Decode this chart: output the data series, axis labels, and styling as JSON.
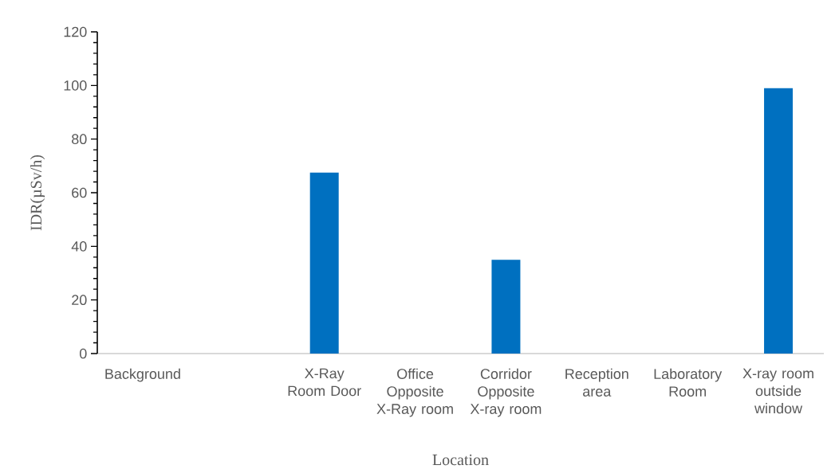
{
  "chart_data": {
    "type": "bar",
    "categories": [
      "Background",
      null,
      "X-Ray Room Door",
      "Office Opposite X-Ray room",
      "Corridor Opposite X-ray room",
      "Reception area",
      "Laboratory Room",
      "X-ray room outside window"
    ],
    "values": [
      0,
      0,
      67.5,
      0,
      35,
      0,
      0,
      99
    ],
    "color": "#0070c0",
    "xlabel": "Location",
    "ylabel": "IDR(µSv/h)",
    "ylim": [
      0,
      120
    ],
    "yticks": [
      0,
      20,
      40,
      60,
      80,
      100,
      120
    ]
  }
}
